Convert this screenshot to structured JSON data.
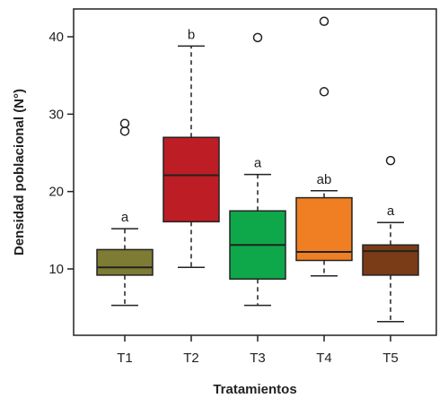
{
  "chart_data": {
    "type": "boxplot",
    "title": "",
    "xlabel": "Tratamientos",
    "ylabel": "Densidad poblacional (N°)",
    "ylim": [
      0,
      45
    ],
    "yticks": [
      10,
      20,
      30,
      40
    ],
    "grid": false,
    "categories": [
      "T1",
      "T2",
      "T3",
      "T4",
      "T5"
    ],
    "boxes": [
      {
        "label": "T1",
        "whisker_low": 5.3,
        "q1": 9.2,
        "median": 10.2,
        "q3": 12.5,
        "whisker_high": 15.2,
        "outliers": [
          27.8,
          28.8
        ],
        "color": "#7e7b35",
        "group": "a"
      },
      {
        "label": "T2",
        "whisker_low": 10.2,
        "q1": 16.1,
        "median": 22.1,
        "q3": 27.0,
        "whisker_high": 38.8,
        "outliers": [],
        "color": "#bd1d24",
        "group": "b"
      },
      {
        "label": "T3",
        "whisker_low": 5.3,
        "q1": 8.7,
        "median": 13.1,
        "q3": 17.5,
        "whisker_high": 22.2,
        "outliers": [
          39.9
        ],
        "color": "#0ea84a",
        "group": "a"
      },
      {
        "label": "T4",
        "whisker_low": 9.1,
        "q1": 11.1,
        "median": 12.2,
        "q3": 19.2,
        "whisker_high": 20.1,
        "outliers": [
          32.9,
          42.0
        ],
        "color": "#f07f24",
        "group": "ab"
      },
      {
        "label": "T5",
        "whisker_low": 3.2,
        "q1": 9.2,
        "median": 12.3,
        "q3": 13.1,
        "whisker_high": 16.0,
        "outliers": [
          24.0
        ],
        "color": "#7a3b17",
        "group": "a"
      }
    ]
  }
}
